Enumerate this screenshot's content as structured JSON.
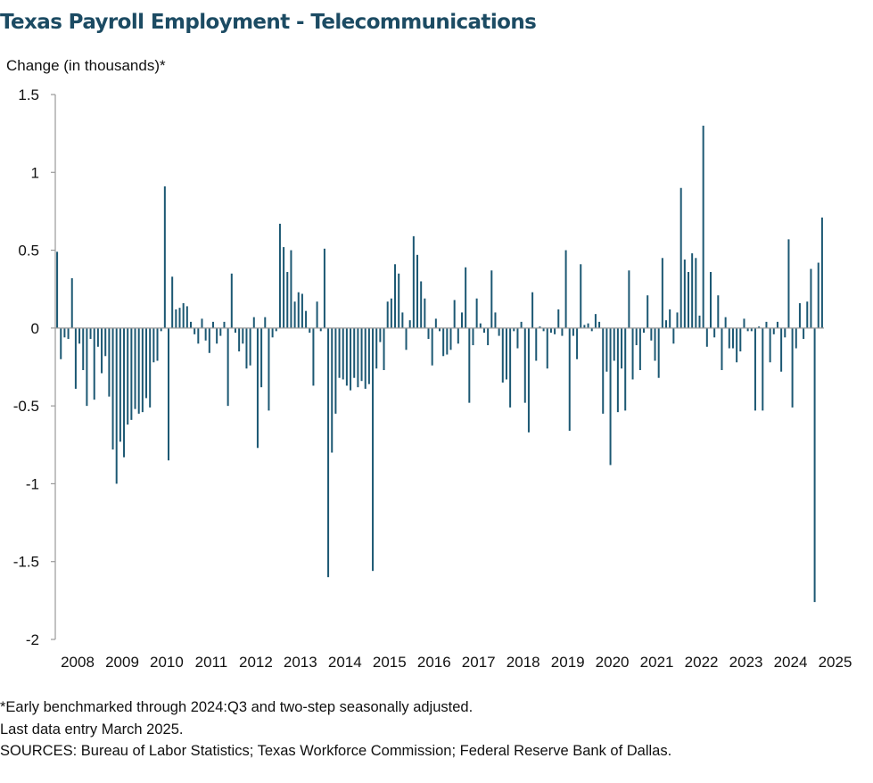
{
  "title": "Texas Payroll Employment - Telecommunications",
  "notes": {
    "line1": "*Early benchmarked through 2024:Q3 and two-step seasonally adjusted.",
    "line2": "Last data entry March 2025.",
    "line3": "SOURCES: Bureau of Labor Statistics; Texas Workforce Commission; Federal Reserve Bank of Dallas."
  },
  "colors": {
    "bar": "#1c5873",
    "axis": "#9a9a9a",
    "title": "#1c4b63"
  },
  "chart_data": {
    "type": "bar",
    "ylabel": "Change (in thousands)*",
    "ylim": [
      -2,
      1.5
    ],
    "yticks": [
      1.5,
      1,
      0.5,
      0,
      -0.5,
      -1,
      -1.5,
      -2
    ],
    "ytick_labels": [
      "1.5",
      "1",
      "0.5",
      "0",
      "-0.5",
      "-1",
      "-1.5",
      "-2"
    ],
    "xtick_labels": [
      "2008",
      "2009",
      "2010",
      "2011",
      "2012",
      "2013",
      "2014",
      "2015",
      "2016",
      "2017",
      "2018",
      "2019",
      "2020",
      "2021",
      "2022",
      "2023",
      "2024",
      "2025"
    ],
    "frequency": "monthly",
    "start": "2008-01",
    "end": "2025-03",
    "grid": false,
    "legend": "none",
    "values": [
      0.49,
      -0.2,
      -0.06,
      -0.07,
      0.32,
      -0.39,
      -0.1,
      -0.27,
      -0.5,
      -0.07,
      -0.46,
      -0.12,
      -0.29,
      -0.18,
      -0.44,
      -0.78,
      -1.0,
      -0.73,
      -0.83,
      -0.62,
      -0.59,
      -0.52,
      -0.55,
      -0.54,
      -0.45,
      -0.51,
      -0.22,
      -0.21,
      -0.02,
      0.91,
      -0.85,
      0.33,
      0.12,
      0.13,
      0.16,
      0.14,
      0.04,
      -0.04,
      -0.1,
      0.06,
      -0.08,
      -0.16,
      0.04,
      -0.1,
      -0.05,
      0.04,
      -0.5,
      0.35,
      -0.03,
      -0.15,
      -0.1,
      -0.26,
      -0.24,
      0.07,
      -0.77,
      -0.38,
      0.07,
      -0.53,
      -0.06,
      -0.02,
      0.67,
      0.52,
      0.36,
      0.5,
      0.17,
      0.23,
      0.22,
      0.11,
      -0.03,
      -0.37,
      0.17,
      -0.02,
      0.51,
      -1.6,
      -0.8,
      -0.55,
      -0.32,
      -0.33,
      -0.37,
      -0.4,
      -0.32,
      -0.38,
      -0.34,
      -0.39,
      -0.36,
      -1.56,
      -0.26,
      -0.09,
      -0.27,
      0.17,
      0.19,
      0.41,
      0.35,
      0.1,
      -0.14,
      0.05,
      0.59,
      0.47,
      0.3,
      0.19,
      -0.07,
      -0.24,
      0.06,
      -0.02,
      -0.18,
      -0.17,
      -0.14,
      0.18,
      -0.1,
      0.1,
      0.39,
      -0.48,
      -0.11,
      0.19,
      0.03,
      -0.03,
      -0.11,
      0.37,
      0.1,
      -0.05,
      -0.35,
      -0.33,
      -0.51,
      -0.02,
      -0.13,
      0.04,
      -0.48,
      -0.67,
      0.23,
      -0.21,
      0.01,
      -0.02,
      -0.26,
      -0.03,
      -0.04,
      0.12,
      -0.05,
      0.5,
      -0.66,
      -0.05,
      -0.2,
      0.41,
      0.02,
      0.03,
      -0.02,
      0.09,
      0.04,
      -0.55,
      -0.28,
      -0.88,
      -0.21,
      -0.54,
      -0.26,
      -0.53,
      0.37,
      -0.33,
      -0.11,
      -0.27,
      -0.03,
      0.21,
      -0.08,
      -0.21,
      -0.32,
      0.45,
      0.05,
      0.12,
      -0.1,
      0.1,
      0.9,
      0.44,
      0.36,
      0.48,
      0.45,
      0.08,
      1.3,
      -0.12,
      0.36,
      -0.06,
      0.21,
      -0.27,
      0.07,
      -0.13,
      -0.13,
      -0.22,
      -0.15,
      0.06,
      -0.02,
      -0.02,
      -0.53,
      0.01,
      -0.53,
      0.04,
      -0.22,
      -0.04,
      0.04,
      -0.28,
      -0.06,
      0.57,
      -0.51,
      -0.13,
      0.16,
      -0.07,
      0.17,
      0.38,
      -1.76,
      0.42,
      0.71
    ]
  }
}
